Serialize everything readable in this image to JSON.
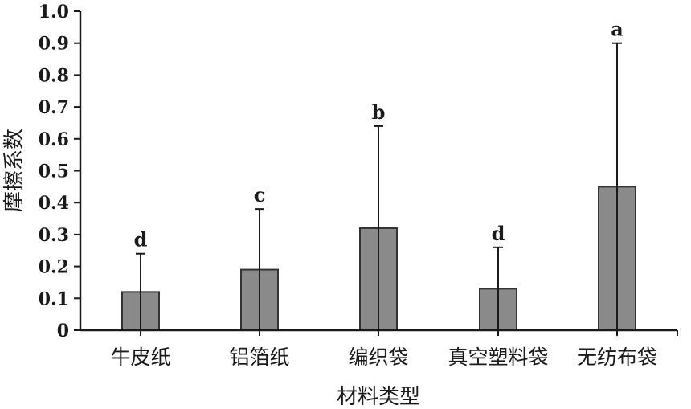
{
  "chart_data": {
    "type": "bar",
    "categories": [
      "牛皮纸",
      "铝箔纸",
      "编织袋",
      "真空塑料袋",
      "无纺布袋"
    ],
    "values": [
      0.12,
      0.19,
      0.32,
      0.13,
      0.45
    ],
    "error_upper": [
      0.24,
      0.38,
      0.64,
      0.26,
      0.9
    ],
    "significance": [
      "d",
      "c",
      "b",
      "d",
      "a"
    ],
    "xlabel": "材料类型",
    "ylabel": "摩擦系数",
    "ylim": [
      0,
      1.0
    ],
    "yticks": [
      "0",
      "0.1",
      "0.2",
      "0.3",
      "0.4",
      "0.5",
      "0.6",
      "0.7",
      "0.8",
      "0.9",
      "1.0"
    ],
    "ytick_values": [
      0,
      0.1,
      0.2,
      0.3,
      0.4,
      0.5,
      0.6,
      0.7,
      0.8,
      0.9,
      1.0
    ],
    "colors": {
      "bar_fill": "#8a8a8a",
      "bar_stroke": "#333333",
      "axis": "#1a1a1a"
    },
    "grid": false
  }
}
